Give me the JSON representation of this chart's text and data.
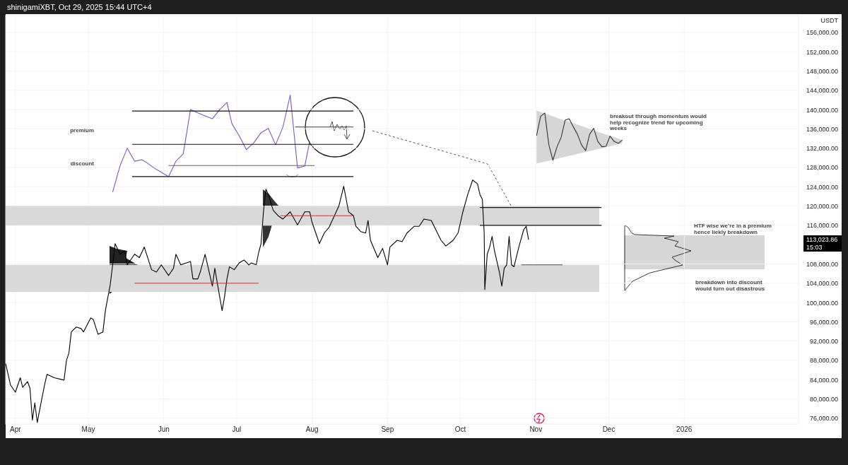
{
  "chart_data": {
    "type": "line",
    "title": "shinigamiXBT, Oct 29, 2025 15:44 UTC+4",
    "ylabel": "USDT",
    "x": [
      "2025-03-28",
      "2025-03-30",
      "2025-04-01",
      "2025-04-03",
      "2025-04-04",
      "2025-04-06",
      "2025-04-07",
      "2025-04-08",
      "2025-04-09",
      "2025-04-10",
      "2025-04-11",
      "2025-04-13",
      "2025-04-14",
      "2025-04-17",
      "2025-04-21",
      "2025-04-22",
      "2025-04-23",
      "2025-04-24",
      "2025-04-26",
      "2025-04-28",
      "2025-04-29",
      "2025-05-02",
      "2025-05-03",
      "2025-05-05",
      "2025-05-07",
      "2025-05-08",
      "2025-05-10",
      "2025-05-11",
      "2025-05-12",
      "2025-05-14",
      "2025-05-16",
      "2025-05-17",
      "2025-05-20",
      "2025-05-22",
      "2025-05-24",
      "2025-05-27",
      "2025-05-29",
      "2025-05-31",
      "2025-06-03",
      "2025-06-05",
      "2025-06-06",
      "2025-06-08",
      "2025-06-12",
      "2025-06-13",
      "2025-06-15",
      "2025-06-16",
      "2025-06-18",
      "2025-06-21",
      "2025-06-22",
      "2025-06-23",
      "2025-06-25",
      "2025-06-26",
      "2025-06-27",
      "2025-06-28",
      "2025-06-30",
      "2025-07-02",
      "2025-07-04",
      "2025-07-06",
      "2025-07-07",
      "2025-07-09",
      "2025-07-10",
      "2025-07-11",
      "2025-07-12",
      "2025-07-13",
      "2025-07-14",
      "2025-07-16",
      "2025-07-18",
      "2025-07-20",
      "2025-07-23",
      "2025-07-26",
      "2025-07-29",
      "2025-07-31",
      "2025-08-01",
      "2025-08-04",
      "2025-08-06",
      "2025-08-08",
      "2025-08-12",
      "2025-08-14",
      "2025-08-16",
      "2025-08-18",
      "2025-08-19",
      "2025-08-21",
      "2025-08-23",
      "2025-08-24",
      "2025-08-25",
      "2025-08-28",
      "2025-08-30",
      "2025-09-01",
      "2025-09-02",
      "2025-09-05",
      "2025-09-07",
      "2025-09-09",
      "2025-09-12",
      "2025-09-14",
      "2025-09-16",
      "2025-09-19",
      "2025-09-23",
      "2025-09-25",
      "2025-09-28",
      "2025-09-30",
      "2025-10-02",
      "2025-10-04",
      "2025-10-06",
      "2025-10-08",
      "2025-10-09",
      "2025-10-10",
      "2025-10-10T18:00",
      "2025-10-11",
      "2025-10-12",
      "2025-10-13",
      "2025-10-14",
      "2025-10-15",
      "2025-10-17",
      "2025-10-18",
      "2025-10-19",
      "2025-10-20",
      "2025-10-21",
      "2025-10-22",
      "2025-10-23",
      "2025-10-25",
      "2025-10-27",
      "2025-10-28",
      "2025-10-29"
    ],
    "series": [
      {
        "color": "#000000",
        "values": [
          87300,
          82900,
          81400,
          84400,
          82400,
          83600,
          82200,
          75600,
          79200,
          75100,
          77800,
          82900,
          85100,
          84400,
          83900,
          88000,
          89500,
          93900,
          94900,
          94600,
          93900,
          96800,
          96500,
          93400,
          93900,
          98300,
          103700,
          107800,
          112200,
          110000,
          110700,
          107800,
          110000,
          109300,
          111500,
          106800,
          106300,
          107800,
          105600,
          107100,
          110000,
          107800,
          108500,
          104900,
          104900,
          106300,
          110000,
          103400,
          107100,
          104100,
          98300,
          101200,
          104900,
          107400,
          106800,
          108200,
          108800,
          107800,
          108200,
          107800,
          110300,
          112200,
          118800,
          123500,
          122400,
          119100,
          118000,
          117300,
          118800,
          116100,
          118800,
          118800,
          116600,
          112200,
          114400,
          115600,
          120000,
          124100,
          118800,
          118000,
          115800,
          114700,
          114400,
          117000,
          112900,
          109300,
          111200,
          107800,
          111500,
          112900,
          112600,
          114400,
          115800,
          115800,
          117300,
          117000,
          112900,
          111700,
          112900,
          114400,
          118800,
          122400,
          125400,
          124600,
          122400,
          121400,
          114400,
          102700,
          110000,
          111500,
          113700,
          110700,
          106300,
          103400,
          107100,
          107800,
          113700,
          107800,
          107400,
          111500,
          115100,
          115800,
          113023.86
        ]
      },
      {
        "color": "#7e57c2",
        "x": [
          "2025-05-11",
          "2025-05-14",
          "2025-05-17",
          "2025-05-20",
          "2025-05-23",
          "2025-05-25",
          "2025-05-28",
          "2025-05-31",
          "2025-06-03",
          "2025-06-06",
          "2025-06-09",
          "2025-06-12",
          "2025-06-15",
          "2025-06-18",
          "2025-06-21",
          "2025-06-24",
          "2025-06-27",
          "2025-06-29",
          "2025-07-02",
          "2025-07-05",
          "2025-07-08",
          "2025-07-11",
          "2025-07-14",
          "2025-07-17",
          "2025-07-20",
          "2025-07-23",
          "2025-07-26",
          "2025-07-29",
          "2025-07-31"
        ],
        "values": [
          122900,
          128300,
          132000,
          129300,
          129600,
          129000,
          127900,
          127000,
          126100,
          129300,
          130800,
          140000,
          139300,
          138700,
          138100,
          140000,
          141500,
          137100,
          134600,
          131700,
          133100,
          135200,
          136100,
          132700,
          136400,
          143000,
          127900,
          128300,
          133400
        ]
      },
      {
        "color": "#111111",
        "x": [
          "2025-05-19",
          "2025-08-18"
        ],
        "values": [
          139700,
          139700
        ]
      },
      {
        "color": "#111111",
        "x": [
          "2025-05-19",
          "2025-08-18"
        ],
        "values": [
          132800,
          132800
        ]
      },
      {
        "color": "#111111",
        "x": [
          "2025-05-19",
          "2025-08-18"
        ],
        "values": [
          126100,
          126100
        ]
      },
      {
        "color": "#666666",
        "x": [
          "2025-07-25",
          "2025-08-18"
        ],
        "values": [
          136400,
          136400
        ]
      },
      {
        "color": "#666666",
        "x": [
          "2025-06-03",
          "2025-08-02"
        ],
        "values": [
          128400,
          128400
        ]
      },
      {
        "color": "#333333",
        "x": [
          "2025-11-01T07:00",
          "2025-11-02T23:00",
          "2025-11-04T16:00",
          "2025-11-06T08:00",
          "2025-11-08",
          "2025-11-09T17:00",
          "2025-11-11T09:00",
          "2025-11-13T01:00",
          "2025-11-14T17:00",
          "2025-11-16T10:00",
          "2025-11-18T02:00",
          "2025-11-19T18:00",
          "2025-11-21T11:00",
          "2025-11-23T03:00",
          "2025-11-24T19:00",
          "2025-11-26T11:00",
          "2025-11-28T04:00",
          "2025-11-29T20:00",
          "2025-12-01T12:00",
          "2025-12-03T04:00",
          "2025-12-04T21:00",
          "2025-12-06T13:00"
        ],
        "values": [
          134600,
          138600,
          139300,
          132700,
          129500,
          132300,
          134200,
          137800,
          138100,
          136400,
          134900,
          132700,
          131500,
          134900,
          136100,
          133400,
          132300,
          132400,
          134500,
          133400,
          133000,
          133700
        ],
        "upper": [
          139800,
          139500,
          139200,
          138900,
          138600,
          138300,
          138000,
          137700,
          137500,
          137200,
          136900,
          136600,
          136300,
          136000,
          135700,
          135400,
          135100,
          134800,
          134600,
          134300,
          134000,
          133700
        ],
        "lower": [
          128800,
          129000,
          129200,
          129400,
          129600,
          129800,
          130000,
          130200,
          130400,
          130600,
          130800,
          131000,
          131200,
          131400,
          131600,
          131800,
          132000,
          132200,
          132400,
          132600,
          132800,
          133000
        ]
      },
      {
        "color": "#d32f2f",
        "x": [
          "2025-05-20",
          "2025-07-10"
        ],
        "values": [
          104000,
          104000
        ]
      },
      {
        "color": "#d32f2f",
        "x": [
          "2025-07-19",
          "2025-08-18"
        ],
        "values": [
          118000,
          118000
        ]
      },
      {
        "color": "#111111",
        "x": [
          "2025-10-09",
          "2025-11-28"
        ],
        "values": [
          119700,
          119700
        ]
      },
      {
        "color": "#111111",
        "x": [
          "2025-10-09",
          "2025-11-28"
        ],
        "values": [
          116000,
          116000
        ]
      },
      {
        "color": "#555555",
        "x": [
          "2025-10-26",
          "2025-11-12"
        ],
        "values": [
          107800,
          107800
        ]
      }
    ],
    "xlim": [
      "2025-03-28",
      "2026-02-17"
    ],
    "ylim": [
      74800,
      159500
    ],
    "xticks": [
      {
        "value": "2025-04-01",
        "label": "Apr"
      },
      {
        "value": "2025-05-01",
        "label": "May"
      },
      {
        "value": "2025-06-01",
        "label": "Jun"
      },
      {
        "value": "2025-07-01",
        "label": "Jul"
      },
      {
        "value": "2025-08-01",
        "label": "Aug"
      },
      {
        "value": "2025-09-01",
        "label": "Sep"
      },
      {
        "value": "2025-10-01",
        "label": "Oct"
      },
      {
        "value": "2025-11-01",
        "label": "Nov"
      },
      {
        "value": "2025-12-01",
        "label": "Dec"
      },
      {
        "value": "2026-01-01",
        "label": "2026"
      }
    ],
    "yticks": [
      {
        "value": 76000,
        "label": "76,000.00"
      },
      {
        "value": 80000,
        "label": "80,000.00"
      },
      {
        "value": 84000,
        "label": "84,000.00"
      },
      {
        "value": 88000,
        "label": "88,000.00"
      },
      {
        "value": 92000,
        "label": "92,000.00"
      },
      {
        "value": 96000,
        "label": "96,000.00"
      },
      {
        "value": 100000,
        "label": "100,000.00"
      },
      {
        "value": 104000,
        "label": "104,000.00"
      },
      {
        "value": 108000,
        "label": "108,000.00"
      },
      {
        "value": 116000,
        "label": "116,000.00"
      },
      {
        "value": 120000,
        "label": "120,000.00"
      },
      {
        "value": 124000,
        "label": "124,000.00"
      },
      {
        "value": 128000,
        "label": "128,000.00"
      },
      {
        "value": 132000,
        "label": "132,000.00"
      },
      {
        "value": 136000,
        "label": "136,000.00"
      },
      {
        "value": 140000,
        "label": "140,000.00"
      },
      {
        "value": 144000,
        "label": "144,000.00"
      },
      {
        "value": 148000,
        "label": "148,000.00"
      },
      {
        "value": 152000,
        "label": "152,000.00"
      },
      {
        "value": 156000,
        "label": "156,000.00"
      }
    ],
    "grid": true,
    "bands": [
      {
        "axis": "y",
        "from": 116000,
        "to": 120000,
        "color": "#d9d9d9"
      },
      {
        "axis": "y",
        "from": 102200,
        "to": 107800,
        "color": "#d9d9d9"
      }
    ],
    "annotations": [
      "premium",
      "discount",
      "breakout through momentum would help recognize trend for upcoming weeks",
      "HTF wise we’re in a premium hence liekly breakdown",
      "breakdown into discount would turn out disastrous",
      "113,023.86",
      "15:03"
    ]
  }
}
